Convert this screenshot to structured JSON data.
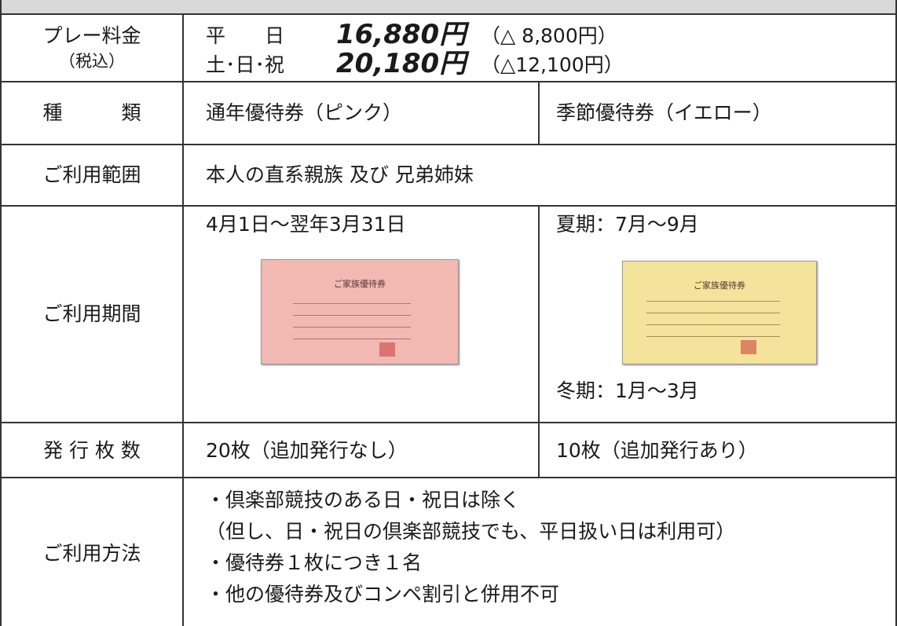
{
  "table": {
    "price": {
      "label": "プレー料金",
      "sublabel": "（税込）",
      "weekday": {
        "day": "平　　日",
        "price": "16,880円",
        "discount": "（△ 8,800円）"
      },
      "holiday": {
        "day": "土･日･祝",
        "price": "20,180円",
        "discount": "（△12,100円）"
      }
    },
    "kind": {
      "label": "種　　　類",
      "annual": "通年優待券（ピンク）",
      "seasonal": "季節優待券（イエロー）"
    },
    "scope": {
      "label": "ご利用範囲",
      "text": "本人の直系親族 及び 兄弟姉妹"
    },
    "period": {
      "label": "ご利用期間",
      "annual": "4月1日～翌年3月31日",
      "summer": "夏期：7月～9月",
      "winter": "冬期：1月～3月",
      "card_title": "ご家族優待券"
    },
    "issue": {
      "label": "発 行 枚 数",
      "annual": "20枚（追加発行なし）",
      "seasonal": "10枚（追加発行あり）"
    },
    "usage": {
      "label": "ご利用方法",
      "lines": [
        "・倶楽部競技のある日・祝日は除く",
        "（但し、日・祝日の倶楽部競技でも、平日扱い日は利用可）",
        "・優待券１枚につき１名",
        "・他の優待券及びコンペ割引と併用不可"
      ]
    }
  }
}
